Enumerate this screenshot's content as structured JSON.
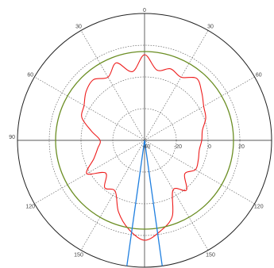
{
  "chart_data": {
    "type": "line",
    "projection": "polar",
    "zero_direction": "top",
    "angle_direction": "mirrored",
    "angle_tick_labels": [
      {
        "label": "0",
        "angle": 0
      },
      {
        "label": "30",
        "angle": -30
      },
      {
        "label": "30",
        "angle": 30
      },
      {
        "label": "60",
        "angle": -60
      },
      {
        "label": "60",
        "angle": 60
      },
      {
        "label": "90",
        "angle": -90
      },
      {
        "label": "90",
        "angle": 90
      },
      {
        "label": "120",
        "angle": -120
      },
      {
        "label": "120",
        "angle": 120
      },
      {
        "label": "150",
        "angle": -150
      },
      {
        "label": "150",
        "angle": 150
      }
    ],
    "angular_grid_step": 30,
    "radial_range": [
      -40,
      40
    ],
    "radial_ticks": [
      -20,
      0,
      20
    ],
    "radial_tick_labels": [
      "-40",
      "-20",
      "0",
      "20"
    ],
    "grid": true,
    "colors": {
      "pattern": "#ee1c1c",
      "level": "#6b8e23",
      "beam": "#1f7fe0",
      "grid": "#555555",
      "frame": "#222222"
    },
    "series": [
      {
        "role": "radiation-pattern",
        "angle": [
          -180,
          -170,
          -160,
          -150,
          -140,
          -130,
          -120,
          -110,
          -100,
          -90,
          -80,
          -70,
          -60,
          -50,
          -40,
          -30,
          -20,
          -10,
          0,
          10,
          20,
          30,
          40,
          50,
          60,
          70,
          80,
          90,
          100,
          110,
          120,
          130,
          140,
          150,
          160,
          170,
          180
        ],
        "r": [
          23,
          17,
          8,
          -3,
          -1,
          -8,
          2,
          -6,
          -10,
          -12,
          -6,
          2,
          4,
          8,
          10,
          6,
          12,
          4,
          14,
          5,
          8,
          6,
          11,
          7,
          3,
          1,
          -3,
          -4,
          -5,
          -4,
          -3,
          -7,
          1,
          -4,
          11,
          18,
          23
        ]
      },
      {
        "role": "reference-level",
        "angle": [
          -180,
          180
        ],
        "r": [
          16,
          16
        ]
      },
      {
        "role": "beam-edges",
        "angle": [
          -172,
          172
        ],
        "r": [
          40,
          40
        ]
      }
    ]
  }
}
